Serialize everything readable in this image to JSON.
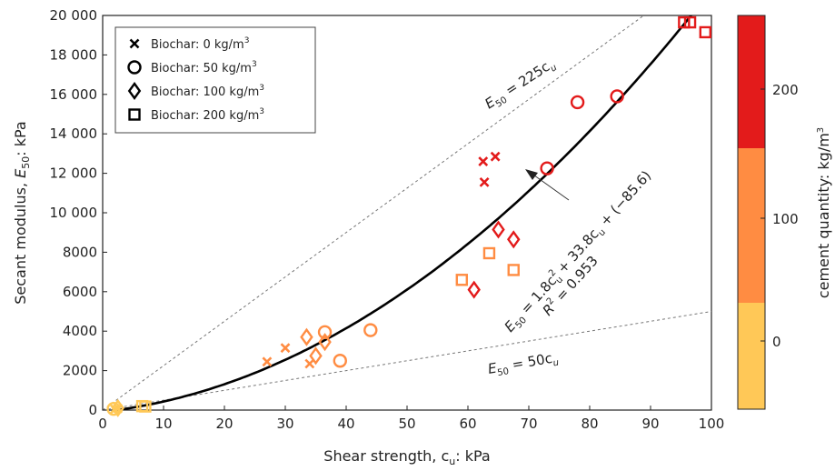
{
  "chart_data": {
    "type": "scatter",
    "xlabel": "Shear strength, c",
    "xlabel_sub": "u",
    "xlabel_suffix": ": kPa",
    "ylabel": "Secant modulus, ",
    "ylabel_sym": "E",
    "ylabel_sub": "50",
    "ylabel_suffix": ": kPa",
    "xlim": [
      0,
      100
    ],
    "ylim": [
      0,
      20000
    ],
    "x_ticks": [
      "0",
      "10",
      "20",
      "30",
      "40",
      "50",
      "60",
      "70",
      "80",
      "90",
      "100"
    ],
    "y_ticks": [
      "0",
      "2000",
      "4000",
      "6000",
      "8000",
      "10 000",
      "12 000",
      "14 000",
      "16 000",
      "18 000",
      "20 000"
    ],
    "legend": [
      {
        "marker": "cross",
        "label": "Biochar: 0 kg/m",
        "sup": "3"
      },
      {
        "marker": "circle",
        "label": "Biochar: 50 kg/m",
        "sup": "3"
      },
      {
        "marker": "diamond",
        "label": "Biochar: 100 kg/m",
        "sup": "3"
      },
      {
        "marker": "square",
        "label": "Biochar: 200 kg/m",
        "sup": "3"
      }
    ],
    "colorbar": {
      "label": "cement quantity: kg/m",
      "label_sup": "3",
      "ticks": [
        "0",
        "100",
        "200"
      ],
      "bands": [
        {
          "name": "0",
          "color": "#ffc857"
        },
        {
          "name": "100",
          "color": "#ff8c42"
        },
        {
          "name": "200",
          "color": "#e31b1b"
        }
      ]
    },
    "fit": {
      "a": 1.8,
      "b": 33.8,
      "c": -85.6,
      "r2": "0.953"
    },
    "fit_label": {
      "e": "E",
      "e_sub": "50",
      "eq": " = 1.8c",
      "sup": "2",
      "sub1": "u",
      "mid": " + 33.8c",
      "sub2": "u",
      "tail": " + (−85.6)"
    },
    "r2_label": {
      "r": "R",
      "sup": "2",
      "tail": " = 0.953"
    },
    "upper_line_label": {
      "e": "E",
      "sub": "50",
      "eq": " = 225c",
      "usub": "u"
    },
    "lower_line_label": {
      "e": "E",
      "sub": "50",
      "eq": " = 50c",
      "usub": "u"
    },
    "upper_ref_slope": 225,
    "lower_ref_slope": 50,
    "series": [
      {
        "marker": "cross",
        "cement": 0,
        "points": [
          [
            2,
            50
          ],
          [
            2.5,
            80
          ]
        ]
      },
      {
        "marker": "cross",
        "cement": 100,
        "points": [
          [
            27,
            2450
          ],
          [
            30,
            3150
          ],
          [
            34,
            2350
          ]
        ]
      },
      {
        "marker": "cross",
        "cement": 200,
        "points": [
          [
            62.5,
            12600
          ],
          [
            62.7,
            11550
          ],
          [
            64.5,
            12850
          ]
        ]
      },
      {
        "marker": "circle",
        "cement": 0,
        "points": [
          [
            1.8,
            60
          ]
        ]
      },
      {
        "marker": "circle",
        "cement": 100,
        "points": [
          [
            36.5,
            3950
          ],
          [
            39,
            2500
          ],
          [
            44,
            4050
          ]
        ]
      },
      {
        "marker": "circle",
        "cement": 200,
        "points": [
          [
            73,
            12250
          ],
          [
            78,
            15600
          ],
          [
            84.5,
            15900
          ]
        ]
      },
      {
        "marker": "diamond",
        "cement": 0,
        "points": [
          [
            2.5,
            100
          ]
        ]
      },
      {
        "marker": "diamond",
        "cement": 100,
        "points": [
          [
            33.5,
            3700
          ],
          [
            35,
            2750
          ],
          [
            36.5,
            3450
          ]
        ]
      },
      {
        "marker": "diamond",
        "cement": 200,
        "points": [
          [
            61,
            6100
          ],
          [
            65,
            9150
          ],
          [
            67.5,
            8650
          ]
        ]
      },
      {
        "marker": "square",
        "cement": 0,
        "points": [
          [
            6.5,
            200
          ],
          [
            7,
            180
          ]
        ]
      },
      {
        "marker": "square",
        "cement": 100,
        "points": [
          [
            59,
            6600
          ],
          [
            63.5,
            7950
          ],
          [
            67.5,
            7100
          ]
        ]
      },
      {
        "marker": "square",
        "cement": 200,
        "points": [
          [
            95.5,
            19650
          ],
          [
            96.5,
            19650
          ],
          [
            99,
            19150
          ]
        ]
      }
    ]
  }
}
